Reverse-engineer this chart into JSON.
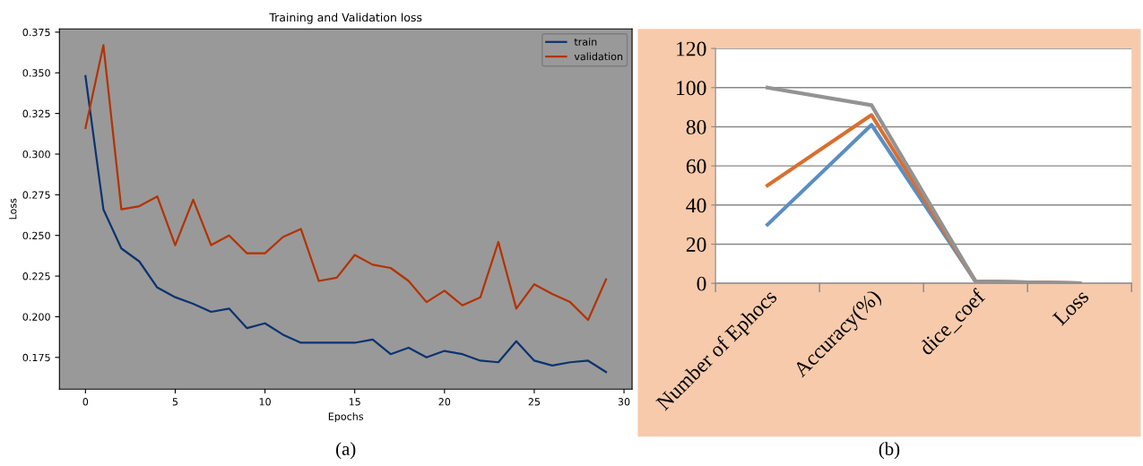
{
  "chart_data": [
    {
      "type": "line",
      "title": "Training and Validation loss",
      "xlabel": "Epochs",
      "ylabel": "Loss",
      "x": [
        0,
        1,
        2,
        3,
        4,
        5,
        6,
        7,
        8,
        9,
        10,
        11,
        12,
        13,
        14,
        15,
        16,
        17,
        18,
        19,
        20,
        21,
        22,
        23,
        24,
        25,
        26,
        27,
        28,
        29
      ],
      "series": [
        {
          "name": "train",
          "color": "#0b3370",
          "values": [
            0.348,
            0.266,
            0.242,
            0.234,
            0.218,
            0.212,
            0.208,
            0.203,
            0.205,
            0.193,
            0.196,
            0.189,
            0.184,
            0.184,
            0.184,
            0.184,
            0.186,
            0.177,
            0.181,
            0.175,
            0.179,
            0.177,
            0.173,
            0.172,
            0.185,
            0.173,
            0.17,
            0.172,
            0.173,
            0.166
          ]
        },
        {
          "name": "validation",
          "color": "#b33300",
          "values": [
            0.316,
            0.367,
            0.266,
            0.268,
            0.274,
            0.244,
            0.272,
            0.244,
            0.25,
            0.239,
            0.239,
            0.249,
            0.254,
            0.222,
            0.224,
            0.238,
            0.232,
            0.23,
            0.222,
            0.209,
            0.216,
            0.207,
            0.212,
            0.246,
            0.205,
            0.22,
            0.214,
            0.209,
            0.198,
            0.223
          ]
        }
      ],
      "xlim": [
        -1.45,
        30.45
      ],
      "ylim": [
        0.1555,
        0.377
      ],
      "xticks": [
        0,
        5,
        10,
        15,
        20,
        25,
        30
      ],
      "yticks": [
        0.175,
        {
          "value": 0.2,
          "label": "0.200"
        },
        {
          "value": 0.225,
          "label": "0.225"
        },
        {
          "value": 0.25,
          "label": "0.250"
        },
        {
          "value": 0.275,
          "label": "0.275"
        },
        {
          "value": 0.3,
          "label": "0.300"
        },
        {
          "value": 0.325,
          "label": "0.325"
        },
        {
          "value": 0.35,
          "label": "0.350"
        },
        {
          "value": 0.375,
          "label": "0.375"
        }
      ],
      "legend": "top right",
      "annotations": [
        "(a)"
      ]
    },
    {
      "type": "line",
      "categories": [
        "Number of Ephocs",
        "Accuracy(%)",
        "dice_coef",
        "Loss"
      ],
      "series": [
        {
          "color": "#5b8ec0",
          "values": [
            30,
            81,
            1,
            0
          ]
        },
        {
          "color": "#d86f30",
          "values": [
            50,
            86,
            1,
            0
          ]
        },
        {
          "color": "#939393",
          "values": [
            100,
            91,
            1,
            0
          ]
        }
      ],
      "ylim": [
        0,
        120
      ],
      "yticks": [
        0,
        20,
        40,
        60,
        80,
        100,
        120
      ],
      "grid": "y",
      "annotations": [
        "(b)"
      ]
    }
  ]
}
